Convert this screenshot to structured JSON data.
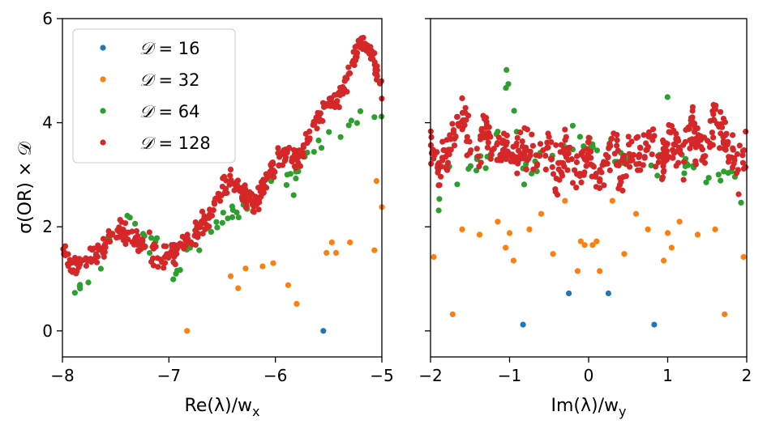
{
  "chart_data": [
    {
      "type": "scatter",
      "panel": "left",
      "xlabel": "Re(λ)/w",
      "xlabel_sub": "x",
      "ylabel": "σ(OR) × 𝒟",
      "xlim": [
        -8,
        -5
      ],
      "ylim": [
        -0.5,
        6
      ],
      "xticks": [
        -8,
        -7,
        -6,
        -5
      ],
      "xtick_labels": [
        "−8",
        "−7",
        "−6",
        "−5"
      ],
      "yticks": [
        0,
        2,
        4,
        6
      ],
      "ytick_labels": [
        "0",
        "2",
        "4",
        "6"
      ],
      "legend": {
        "placement": "top-left",
        "entries": [
          {
            "symbol": "𝒟",
            "text": " = 16"
          },
          {
            "symbol": "𝒟",
            "text": " = 32"
          },
          {
            "symbol": "𝒟",
            "text": " = 64"
          },
          {
            "symbol": "𝒟",
            "text": " = 128"
          }
        ]
      },
      "series": [
        {
          "name": "D = 16",
          "color": "#1f77b4",
          "points": [
            [
              -5.55,
              0.0
            ]
          ]
        },
        {
          "name": "D = 32",
          "color": "#ff7f0e",
          "points": [
            [
              -6.83,
              0.0
            ],
            [
              -6.42,
              1.05
            ],
            [
              -6.35,
              0.82
            ],
            [
              -6.28,
              1.2
            ],
            [
              -6.12,
              1.24
            ],
            [
              -6.02,
              1.3
            ],
            [
              -5.88,
              0.88
            ],
            [
              -5.8,
              0.52
            ],
            [
              -5.52,
              1.5
            ],
            [
              -5.47,
              1.7
            ],
            [
              -5.43,
              1.5
            ],
            [
              -5.3,
              1.7
            ],
            [
              -5.07,
              1.55
            ],
            [
              -5.05,
              2.88
            ],
            [
              -5.0,
              2.38
            ]
          ]
        },
        {
          "name": "D = 64",
          "color": "#2ca02c",
          "seed": 64,
          "anchors": [
            [
              -7.95,
              0.72
            ],
            [
              -7.75,
              0.9
            ],
            [
              -7.6,
              1.5
            ],
            [
              -7.5,
              1.95
            ],
            [
              -7.42,
              2.15
            ],
            [
              -7.3,
              1.95
            ],
            [
              -7.15,
              1.6
            ],
            [
              -7.0,
              1.35
            ],
            [
              -6.95,
              1.12
            ],
            [
              -6.85,
              1.5
            ],
            [
              -6.7,
              1.9
            ],
            [
              -6.55,
              2.1
            ],
            [
              -6.4,
              2.3
            ],
            [
              -6.2,
              2.55
            ],
            [
              -6.0,
              2.9
            ],
            [
              -5.85,
              2.8
            ],
            [
              -5.7,
              3.4
            ],
            [
              -5.55,
              3.6
            ],
            [
              -5.4,
              3.7
            ],
            [
              -5.3,
              3.95
            ],
            [
              -5.2,
              4.1
            ],
            [
              -5.08,
              3.85
            ],
            [
              -5.0,
              4.1
            ]
          ],
          "count": 70,
          "spread": 0.18
        },
        {
          "name": "D = 128",
          "color": "#d62728",
          "seed": 128,
          "anchors": [
            [
              -8.0,
              1.55
            ],
            [
              -7.9,
              1.2
            ],
            [
              -7.8,
              1.4
            ],
            [
              -7.65,
              1.55
            ],
            [
              -7.55,
              1.85
            ],
            [
              -7.45,
              2.0
            ],
            [
              -7.35,
              1.7
            ],
            [
              -7.2,
              1.7
            ],
            [
              -7.1,
              1.4
            ],
            [
              -6.95,
              1.5
            ],
            [
              -6.85,
              1.65
            ],
            [
              -6.75,
              1.9
            ],
            [
              -6.6,
              2.25
            ],
            [
              -6.5,
              2.7
            ],
            [
              -6.4,
              2.9
            ],
            [
              -6.3,
              2.6
            ],
            [
              -6.2,
              2.4
            ],
            [
              -6.1,
              2.85
            ],
            [
              -6.0,
              3.25
            ],
            [
              -5.9,
              3.4
            ],
            [
              -5.8,
              3.3
            ],
            [
              -5.7,
              3.75
            ],
            [
              -5.6,
              4.1
            ],
            [
              -5.5,
              4.4
            ],
            [
              -5.4,
              4.5
            ],
            [
              -5.3,
              5.0
            ],
            [
              -5.2,
              5.55
            ],
            [
              -5.12,
              5.45
            ],
            [
              -5.05,
              5.0
            ],
            [
              -5.0,
              4.6
            ]
          ],
          "count": 430,
          "spread": 0.16
        }
      ]
    },
    {
      "type": "scatter",
      "panel": "right",
      "xlabel": "Im(λ)/w",
      "xlabel_sub": "y",
      "xlim": [
        -2,
        2
      ],
      "ylim": [
        -0.5,
        6
      ],
      "xticks": [
        -2,
        -1,
        0,
        1,
        2
      ],
      "xtick_labels": [
        "−2",
        "−1",
        "0",
        "1",
        "2"
      ],
      "series": [
        {
          "name": "D = 16",
          "color": "#1f77b4",
          "points": [
            [
              -0.83,
              0.12
            ],
            [
              -0.25,
              0.72
            ],
            [
              0.25,
              0.72
            ],
            [
              0.83,
              0.12
            ]
          ]
        },
        {
          "name": "D = 32",
          "color": "#ff7f0e",
          "points": [
            [
              -1.96,
              1.42
            ],
            [
              -1.72,
              0.32
            ],
            [
              -1.6,
              1.95
            ],
            [
              -1.38,
              1.85
            ],
            [
              -1.15,
              2.1
            ],
            [
              -1.05,
              1.6
            ],
            [
              -1.0,
              1.88
            ],
            [
              -0.95,
              1.35
            ],
            [
              -0.75,
              1.95
            ],
            [
              -0.6,
              2.25
            ],
            [
              -0.45,
              1.48
            ],
            [
              -0.3,
              2.5
            ],
            [
              -0.14,
              1.15
            ],
            [
              -0.1,
              1.72
            ],
            [
              -0.05,
              1.65
            ],
            [
              0.05,
              1.65
            ],
            [
              0.1,
              1.72
            ],
            [
              0.14,
              1.15
            ],
            [
              0.3,
              2.5
            ],
            [
              0.45,
              1.48
            ],
            [
              0.6,
              2.25
            ],
            [
              0.75,
              1.95
            ],
            [
              0.95,
              1.35
            ],
            [
              1.0,
              1.88
            ],
            [
              1.05,
              1.6
            ],
            [
              1.15,
              2.1
            ],
            [
              1.38,
              1.85
            ],
            [
              1.6,
              1.95
            ],
            [
              1.72,
              0.32
            ],
            [
              1.96,
              1.42
            ],
            [
              -1.3,
              3.9
            ],
            [
              1.3,
              3.9
            ]
          ]
        },
        {
          "name": "D = 64",
          "color": "#2ca02c",
          "seed": 640,
          "anchors": [
            [
              -2.0,
              2.3
            ],
            [
              -1.95,
              1.95
            ],
            [
              -1.8,
              3.2
            ],
            [
              -1.6,
              3.0
            ],
            [
              -1.4,
              3.2
            ],
            [
              -1.2,
              3.3
            ],
            [
              -1.05,
              4.9
            ],
            [
              -0.95,
              4.4
            ],
            [
              -0.85,
              2.9
            ],
            [
              -0.7,
              3.0
            ],
            [
              -0.55,
              3.4
            ],
            [
              -0.4,
              3.3
            ],
            [
              -0.2,
              3.7
            ],
            [
              0.0,
              3.5
            ],
            [
              0.2,
              3.7
            ],
            [
              0.4,
              3.3
            ],
            [
              0.55,
              3.4
            ],
            [
              0.7,
              3.0
            ],
            [
              0.85,
              2.9
            ],
            [
              0.95,
              4.4
            ],
            [
              1.05,
              4.9
            ],
            [
              1.2,
              3.3
            ],
            [
              1.4,
              3.2
            ],
            [
              1.6,
              3.0
            ],
            [
              1.8,
              3.2
            ],
            [
              1.95,
              2.2
            ]
          ],
          "count": 70,
          "spread": 0.2
        },
        {
          "name": "D = 128",
          "color": "#d62728",
          "seed": 1280,
          "anchors": [
            [
              -2.0,
              3.6
            ],
            [
              -1.9,
              3.1
            ],
            [
              -1.75,
              3.5
            ],
            [
              -1.6,
              4.2
            ],
            [
              -1.45,
              3.3
            ],
            [
              -1.3,
              3.9
            ],
            [
              -1.2,
              3.3
            ],
            [
              -1.05,
              3.6
            ],
            [
              -0.95,
              3.2
            ],
            [
              -0.8,
              3.6
            ],
            [
              -0.65,
              3.3
            ],
            [
              -0.5,
              3.5
            ],
            [
              -0.4,
              3.0
            ],
            [
              -0.3,
              3.6
            ],
            [
              -0.15,
              2.9
            ],
            [
              0.0,
              3.4
            ],
            [
              0.15,
              2.9
            ],
            [
              0.3,
              3.6
            ],
            [
              0.4,
              3.0
            ],
            [
              0.5,
              3.5
            ],
            [
              0.65,
              3.3
            ],
            [
              0.8,
              3.6
            ],
            [
              0.95,
              3.2
            ],
            [
              1.05,
              3.6
            ],
            [
              1.2,
              3.3
            ],
            [
              1.3,
              3.9
            ],
            [
              1.45,
              3.3
            ],
            [
              1.6,
              4.2
            ],
            [
              1.75,
              3.5
            ],
            [
              1.9,
              3.1
            ],
            [
              2.0,
              3.6
            ]
          ],
          "count": 470,
          "spread": 0.32
        }
      ]
    }
  ]
}
